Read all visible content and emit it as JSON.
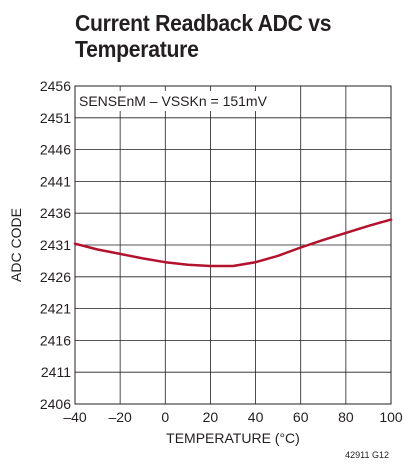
{
  "chart_data": {
    "type": "line",
    "title_lines": [
      "Current Readback ADC vs",
      "Temperature"
    ],
    "xlabel": "TEMPERATURE  (°C)",
    "ylabel": "ADC CODE",
    "annotation": "SENSEnM – VSSKn = 151mV",
    "figure_code": "42911 G12",
    "xlim": [
      -40,
      100
    ],
    "ylim": [
      2406,
      2456
    ],
    "x_ticks": [
      -40,
      -20,
      0,
      20,
      40,
      60,
      80,
      100
    ],
    "x_tick_labels": [
      "–40",
      "–20",
      "0",
      "20",
      "40",
      "60",
      "80",
      "100"
    ],
    "y_ticks": [
      2406,
      2411,
      2416,
      2421,
      2426,
      2431,
      2436,
      2441,
      2446,
      2451,
      2456
    ],
    "y_tick_labels": [
      "2406",
      "2411",
      "2416",
      "2421",
      "2426",
      "2431",
      "2436",
      "2441",
      "2446",
      "2451",
      "2456"
    ],
    "grid": true,
    "line_color": "#b3122e",
    "series": [
      {
        "x": [
          -40,
          -30,
          -20,
          -10,
          0,
          10,
          20,
          30,
          40,
          50,
          60,
          70,
          80,
          90,
          100
        ],
        "values": [
          2431.2,
          2430.3,
          2429.6,
          2428.9,
          2428.3,
          2427.9,
          2427.7,
          2427.7,
          2428.3,
          2429.3,
          2430.6,
          2431.8,
          2432.9,
          2434.0,
          2435.0
        ]
      }
    ]
  }
}
